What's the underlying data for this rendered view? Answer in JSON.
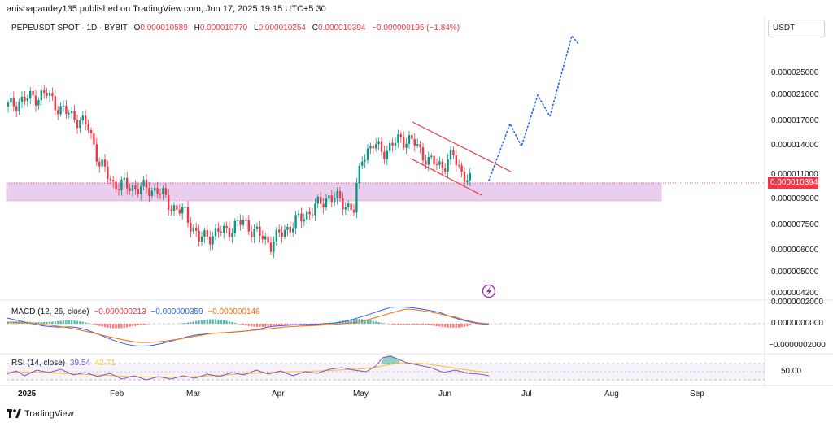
{
  "publisher": "anishapandey135 published on TradingView.com, Jun 17, 2025 19:15 UTC+5:30",
  "legend": {
    "symbol": "PEPEUSDT SPOT · 1D · BYBIT",
    "open_key": "O",
    "open": "0.000010589",
    "high_key": "H",
    "high": "0.000010770",
    "low_key": "L",
    "low": "0.000010254",
    "close_key": "C",
    "close": "0.000010394",
    "change": "−0.000000195 (−1.84%)"
  },
  "currency": "USDT",
  "price_axis": [
    "0.000025000",
    "0.000021000",
    "0.000017000",
    "0.000014000",
    "0.000011000",
    "0.000009000",
    "0.000007500",
    "0.000006000",
    "0.000005000",
    "0.000004200"
  ],
  "price_tag": "0.000010394",
  "macd": {
    "label": "MACD (12, 26, close)",
    "hist": "−0.000000213",
    "macd": "−0.000000359",
    "signal": "−0.000000146",
    "axis": [
      "0.0000002000",
      "0.0000000000",
      "−0.0000002000"
    ]
  },
  "rsi": {
    "label": "RSI (14, close)",
    "value": "39.54",
    "ma": "42.71",
    "axis": [
      "50.00"
    ]
  },
  "months": [
    "2025",
    "Feb",
    "Mar",
    "Apr",
    "May",
    "Jun",
    "Jul",
    "Aug",
    "Sep"
  ],
  "brand": "TradingView",
  "colors": {
    "up": "#089981",
    "down": "#f23645",
    "zone": "#e1bee7",
    "projection": "#2962ff",
    "macd": "#2962ff",
    "signal": "#ff6d00",
    "rsi": "#7e57c2"
  },
  "chart_data": {
    "type": "candlestick",
    "symbol": "PEPEUSDT",
    "timeframe": "1D",
    "x_range": [
      "2025-01-01",
      "2025-06-17"
    ],
    "support_zone": [
      8.9e-06,
      1.05e-05
    ],
    "descending_channel": {
      "upper": [
        [
          "2025-05-23",
          1.6e-05
        ],
        [
          "2025-06-19",
          1.18e-05
        ]
      ],
      "lower": [
        [
          "2025-05-23",
          1.4e-05
        ],
        [
          "2025-06-19",
          9.8e-06
        ]
      ]
    },
    "projection_path": [
      [
        "2025-06-17",
        1.04e-05
      ],
      [
        "2025-06-23",
        1.64e-05
      ],
      [
        "2025-06-28",
        1.4e-05
      ],
      [
        "2025-07-04",
        2.1e-05
      ],
      [
        "2025-07-08",
        1.8e-05
      ],
      [
        "2025-07-15",
        3e-05
      ],
      [
        "2025-07-17",
        2.9e-05
      ]
    ],
    "closes": [
      [
        "2025-01-01",
        1.9e-05
      ],
      [
        "2025-01-05",
        1.98e-05
      ],
      [
        "2025-01-10",
        2.05e-05
      ],
      [
        "2025-01-15",
        2.1e-05
      ],
      [
        "2025-01-20",
        1.85e-05
      ],
      [
        "2025-01-25",
        1.75e-05
      ],
      [
        "2025-01-30",
        1.6e-05
      ],
      [
        "2025-02-03",
        1.2e-05
      ],
      [
        "2025-02-08",
        1.02e-05
      ],
      [
        "2025-02-13",
        1e-05
      ],
      [
        "2025-02-18",
        9.8e-06
      ],
      [
        "2025-02-24",
        9.7e-06
      ],
      [
        "2025-03-01",
        8.5e-06
      ],
      [
        "2025-03-06",
        8e-06
      ],
      [
        "2025-03-11",
        6.5e-06
      ],
      [
        "2025-03-16",
        6.8e-06
      ],
      [
        "2025-03-21",
        7e-06
      ],
      [
        "2025-03-27",
        7.5e-06
      ],
      [
        "2025-04-01",
        6.8e-06
      ],
      [
        "2025-04-06",
        6.3e-06
      ],
      [
        "2025-04-11",
        7e-06
      ],
      [
        "2025-04-16",
        7.6e-06
      ],
      [
        "2025-04-22",
        8.4e-06
      ],
      [
        "2025-04-27",
        9.2e-06
      ],
      [
        "2025-05-02",
        8.8e-06
      ],
      [
        "2025-05-06",
        8.2e-06
      ],
      [
        "2025-05-09",
        1.28e-05
      ],
      [
        "2025-05-13",
        1.38e-05
      ],
      [
        "2025-05-18",
        1.33e-05
      ],
      [
        "2025-05-23",
        1.48e-05
      ],
      [
        "2025-05-28",
        1.41e-05
      ],
      [
        "2025-06-02",
        1.22e-05
      ],
      [
        "2025-06-07",
        1.18e-05
      ],
      [
        "2025-06-11",
        1.27e-05
      ],
      [
        "2025-06-14",
        1.12e-05
      ],
      [
        "2025-06-17",
        1.04e-05
      ]
    ],
    "rsi_band": [
      30,
      70
    ]
  }
}
